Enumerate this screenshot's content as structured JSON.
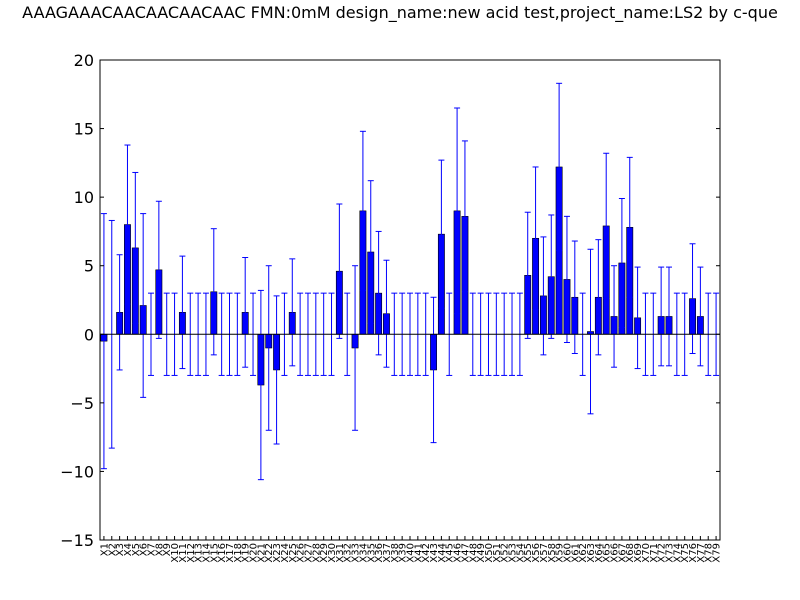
{
  "chart_data": {
    "type": "bar",
    "title": "AAAGAAACAACAACAACAAC  FMN:0mM  design_name:new acid test,project_name:LS2 by c-que",
    "xlabel": "",
    "ylabel": "",
    "ylim": [
      -15,
      20
    ],
    "yticks": [
      -15,
      -10,
      -5,
      0,
      5,
      10,
      15,
      20
    ],
    "ytick_labels": [
      "−15",
      "−10",
      "−5",
      "0",
      "5",
      "10",
      "15",
      "20"
    ],
    "bar_color": "#0000ff",
    "error_color": "#0000ff",
    "categories": [
      "X1",
      "X2",
      "X3",
      "X4",
      "X5",
      "X6",
      "X7",
      "X8",
      "X9",
      "X10",
      "X11",
      "X12",
      "X13",
      "X14",
      "X15",
      "X16",
      "X17",
      "X18",
      "X19",
      "X20",
      "X21",
      "X22",
      "X23",
      "X24",
      "X25",
      "X26",
      "X27",
      "X28",
      "X29",
      "X30",
      "X31",
      "X32",
      "X33",
      "X34",
      "X35",
      "X36",
      "X37",
      "X38",
      "X39",
      "X40",
      "X41",
      "X42",
      "X43",
      "X44",
      "X45",
      "X46",
      "X47",
      "X48",
      "X49",
      "X50",
      "X51",
      "X52",
      "X53",
      "X54",
      "X55",
      "X56",
      "X57",
      "X58",
      "X59",
      "X60",
      "X61",
      "X62",
      "X63",
      "X64",
      "X65",
      "X66",
      "X67",
      "X68",
      "X69",
      "X70",
      "X71",
      "X72",
      "X73",
      "X74",
      "X75",
      "X76",
      "X77",
      "X78",
      "X79"
    ],
    "values": [
      -0.5,
      0,
      1.6,
      8.0,
      6.3,
      2.1,
      0,
      4.7,
      0,
      0,
      1.6,
      0,
      0,
      0,
      3.1,
      0,
      0,
      0,
      1.6,
      0,
      -3.7,
      -1.0,
      -2.6,
      0,
      1.6,
      0,
      0,
      0,
      0,
      0,
      4.6,
      0,
      -1.0,
      9.0,
      6.0,
      3.0,
      1.5,
      0,
      0,
      0,
      0,
      0,
      -2.6,
      7.3,
      0,
      9.0,
      8.6,
      0,
      0,
      0,
      0,
      0,
      0,
      0,
      4.3,
      7.0,
      2.8,
      4.2,
      12.2,
      4.0,
      2.7,
      0,
      0.2,
      2.7,
      7.9,
      1.3,
      5.2,
      7.8,
      1.2,
      0,
      0,
      1.3,
      1.3,
      0,
      0,
      2.6,
      1.3,
      0,
      0
    ],
    "errors": [
      9.3,
      8.3,
      4.2,
      5.8,
      5.5,
      6.7,
      3.0,
      5.0,
      3.0,
      3.0,
      4.1,
      3.0,
      3.0,
      3.0,
      4.6,
      3.0,
      3.0,
      3.0,
      4.0,
      3.0,
      6.9,
      6.0,
      5.4,
      3.0,
      3.9,
      3.0,
      3.0,
      3.0,
      3.0,
      3.0,
      4.9,
      3.0,
      6.0,
      5.8,
      5.2,
      4.5,
      3.9,
      3.0,
      3.0,
      3.0,
      3.0,
      3.0,
      5.3,
      5.4,
      3.0,
      7.5,
      5.5,
      3.0,
      3.0,
      3.0,
      3.0,
      3.0,
      3.0,
      3.0,
      4.6,
      5.2,
      4.3,
      4.5,
      6.1,
      4.6,
      4.1,
      3.0,
      6.0,
      4.2,
      5.3,
      3.7,
      4.7,
      5.1,
      3.7,
      3.0,
      3.0,
      3.6,
      3.6,
      3.0,
      3.0,
      4.0,
      3.6,
      3.0,
      3.0
    ]
  }
}
